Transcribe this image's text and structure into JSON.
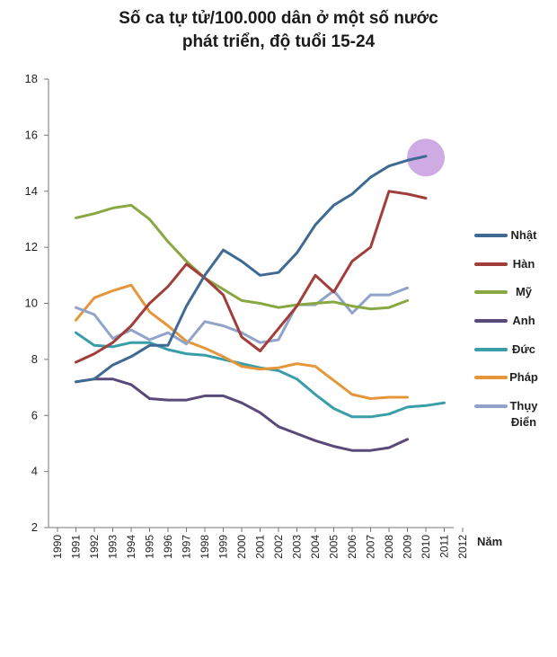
{
  "chart_data": {
    "type": "line",
    "title_line1": "Số ca tự tử/100.000 dân ở một số nước",
    "title_line2": "phát triển, độ tuổi 15-24",
    "xlabel": "Năm",
    "ylabel": "",
    "ylim": [
      2,
      18
    ],
    "yticks": [
      2,
      4,
      6,
      8,
      10,
      12,
      14,
      16,
      18
    ],
    "x": [
      1990,
      1991,
      1992,
      1993,
      1994,
      1995,
      1996,
      1997,
      1998,
      1999,
      2000,
      2001,
      2002,
      2003,
      2004,
      2005,
      2006,
      2007,
      2008,
      2009,
      2010,
      2011,
      2012
    ],
    "xtick_labels": [
      "1990",
      "1991",
      "1992",
      "1993",
      "1994",
      "1995",
      "1996",
      "1997",
      "1998",
      "1999",
      "2000",
      "2001",
      "2002",
      "2003",
      "2004",
      "2005",
      "2006",
      "2007",
      "2008",
      "2009",
      "2010",
      "2011",
      "2012"
    ],
    "highlight": {
      "x": 2010,
      "y": 15.2,
      "color": "#c9a2e0"
    },
    "series": [
      {
        "name": "Nhật",
        "color": "#3f6a93",
        "x": [
          1991,
          1992,
          1993,
          1994,
          1995,
          1996,
          1997,
          1998,
          1999,
          2000,
          2001,
          2002,
          2003,
          2004,
          2005,
          2006,
          2007,
          2008,
          2009,
          2010
        ],
        "values": [
          7.2,
          7.3,
          7.8,
          8.1,
          8.5,
          8.5,
          9.9,
          11.0,
          11.9,
          11.5,
          11.0,
          11.1,
          11.8,
          12.8,
          13.5,
          13.9,
          14.5,
          14.9,
          15.1,
          15.25
        ]
      },
      {
        "name": "Hàn",
        "color": "#a23e3a",
        "x": [
          1991,
          1992,
          1993,
          1994,
          1995,
          1996,
          1997,
          1998,
          1999,
          2000,
          2001,
          2002,
          2003,
          2004,
          2005,
          2006,
          2007,
          2008,
          2009,
          2010
        ],
        "values": [
          7.9,
          8.2,
          8.6,
          9.2,
          10.0,
          10.6,
          11.4,
          10.9,
          10.3,
          8.8,
          8.3,
          9.1,
          9.9,
          11.0,
          10.4,
          11.5,
          12.0,
          14.0,
          13.9,
          13.75
        ]
      },
      {
        "name": "Mỹ",
        "color": "#89a844",
        "x": [
          1991,
          1992,
          1993,
          1994,
          1995,
          1996,
          1997,
          1998,
          1999,
          2000,
          2001,
          2002,
          2003,
          2004,
          2005,
          2006,
          2007,
          2008,
          2009
        ],
        "values": [
          13.05,
          13.2,
          13.4,
          13.5,
          13.0,
          12.2,
          11.5,
          10.9,
          10.5,
          10.1,
          10.0,
          9.85,
          9.95,
          10.0,
          10.05,
          9.9,
          9.8,
          9.85,
          10.1
        ]
      },
      {
        "name": "Anh",
        "color": "#5a4a7a",
        "x": [
          1991,
          1992,
          1993,
          1994,
          1995,
          1996,
          1997,
          1998,
          1999,
          2000,
          2001,
          2002,
          2003,
          2004,
          2005,
          2006,
          2007,
          2008,
          2009
        ],
        "values": [
          7.2,
          7.3,
          7.3,
          7.1,
          6.6,
          6.55,
          6.55,
          6.7,
          6.7,
          6.45,
          6.1,
          5.6,
          5.35,
          5.1,
          4.9,
          4.75,
          4.75,
          4.85,
          5.15
        ]
      },
      {
        "name": "Đức",
        "color": "#3a9ea9",
        "x": [
          1991,
          1992,
          1993,
          1994,
          1995,
          1996,
          1997,
          1998,
          1999,
          2000,
          2001,
          2002,
          2003,
          2004,
          2005,
          2006,
          2007,
          2008,
          2009,
          2010,
          2011
        ],
        "values": [
          8.95,
          8.5,
          8.45,
          8.6,
          8.6,
          8.35,
          8.2,
          8.15,
          8.0,
          7.85,
          7.7,
          7.6,
          7.3,
          6.75,
          6.25,
          5.95,
          5.95,
          6.05,
          6.3,
          6.35,
          6.45
        ]
      },
      {
        "name": "Pháp",
        "color": "#e6963a",
        "x": [
          1991,
          1992,
          1993,
          1994,
          1995,
          1996,
          1997,
          1998,
          1999,
          2000,
          2001,
          2002,
          2003,
          2004,
          2005,
          2006,
          2007,
          2008,
          2009
        ],
        "values": [
          9.4,
          10.2,
          10.45,
          10.65,
          9.7,
          9.2,
          8.65,
          8.4,
          8.1,
          7.75,
          7.65,
          7.7,
          7.85,
          7.75,
          7.25,
          6.75,
          6.6,
          6.65,
          6.65
        ]
      },
      {
        "name": "Thụy Điển",
        "label_line1": "Thụy",
        "label_line2": "Điển",
        "color": "#8fa4c8",
        "x": [
          1991,
          1992,
          1993,
          1994,
          1995,
          1996,
          1997,
          1998,
          1999,
          2000,
          2001,
          2002,
          2003,
          2004,
          2005,
          2006,
          2007,
          2008,
          2009
        ],
        "values": [
          9.85,
          9.6,
          8.75,
          9.05,
          8.7,
          8.95,
          8.55,
          9.35,
          9.2,
          8.95,
          8.6,
          8.7,
          9.95,
          9.95,
          10.45,
          9.65,
          10.3,
          10.3,
          10.55
        ]
      }
    ]
  }
}
